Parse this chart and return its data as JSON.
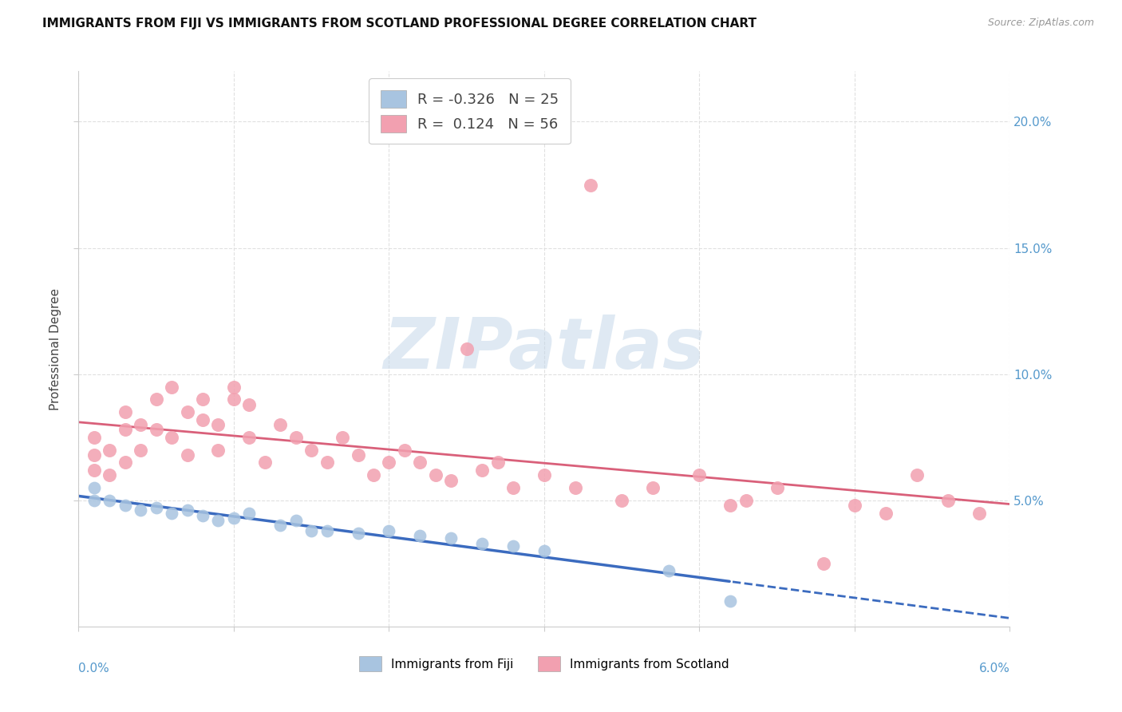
{
  "title": "IMMIGRANTS FROM FIJI VS IMMIGRANTS FROM SCOTLAND PROFESSIONAL DEGREE CORRELATION CHART",
  "source": "Source: ZipAtlas.com",
  "ylabel": "Professional Degree",
  "xlim": [
    0.0,
    0.06
  ],
  "ylim": [
    0.0,
    0.22
  ],
  "fiji_color": "#a8c4e0",
  "fiji_line_color": "#3b6bbf",
  "scotland_color": "#f2a0b0",
  "scotland_line_color": "#d9607a",
  "fiji_R": "-0.326",
  "fiji_N": "25",
  "scotland_R": "0.124",
  "scotland_N": "56",
  "fiji_x": [
    0.001,
    0.001,
    0.002,
    0.003,
    0.004,
    0.005,
    0.006,
    0.007,
    0.008,
    0.009,
    0.01,
    0.011,
    0.013,
    0.014,
    0.015,
    0.016,
    0.018,
    0.02,
    0.022,
    0.024,
    0.026,
    0.028,
    0.03,
    0.038,
    0.042
  ],
  "fiji_y": [
    0.055,
    0.05,
    0.05,
    0.048,
    0.046,
    0.047,
    0.045,
    0.046,
    0.044,
    0.042,
    0.043,
    0.045,
    0.04,
    0.042,
    0.038,
    0.038,
    0.037,
    0.038,
    0.036,
    0.035,
    0.033,
    0.032,
    0.03,
    0.022,
    0.01
  ],
  "scotland_x": [
    0.001,
    0.001,
    0.001,
    0.002,
    0.002,
    0.003,
    0.003,
    0.003,
    0.004,
    0.004,
    0.005,
    0.005,
    0.006,
    0.006,
    0.007,
    0.007,
    0.008,
    0.008,
    0.009,
    0.009,
    0.01,
    0.01,
    0.011,
    0.011,
    0.012,
    0.013,
    0.014,
    0.015,
    0.016,
    0.017,
    0.018,
    0.019,
    0.02,
    0.021,
    0.022,
    0.023,
    0.024,
    0.025,
    0.026,
    0.027,
    0.028,
    0.03,
    0.032,
    0.033,
    0.035,
    0.037,
    0.04,
    0.042,
    0.043,
    0.045,
    0.048,
    0.05,
    0.052,
    0.054,
    0.056,
    0.058
  ],
  "scotland_y": [
    0.062,
    0.068,
    0.075,
    0.06,
    0.07,
    0.065,
    0.078,
    0.085,
    0.07,
    0.08,
    0.078,
    0.09,
    0.075,
    0.095,
    0.068,
    0.085,
    0.09,
    0.082,
    0.07,
    0.08,
    0.09,
    0.095,
    0.075,
    0.088,
    0.065,
    0.08,
    0.075,
    0.07,
    0.065,
    0.075,
    0.068,
    0.06,
    0.065,
    0.07,
    0.065,
    0.06,
    0.058,
    0.11,
    0.062,
    0.065,
    0.055,
    0.06,
    0.055,
    0.175,
    0.05,
    0.055,
    0.06,
    0.048,
    0.05,
    0.055,
    0.025,
    0.048,
    0.045,
    0.06,
    0.05,
    0.045
  ],
  "right_yticks": [
    "20.0%",
    "15.0%",
    "10.0%",
    "5.0%"
  ],
  "right_ytick_vals": [
    0.2,
    0.15,
    0.1,
    0.05
  ],
  "xtick_vals": [
    0.0,
    0.01,
    0.02,
    0.03,
    0.04,
    0.05,
    0.06
  ],
  "background_color": "#ffffff",
  "grid_color": "#e0e0e0",
  "watermark_color": "#c5d8ea",
  "watermark_text": "ZIPatlas"
}
